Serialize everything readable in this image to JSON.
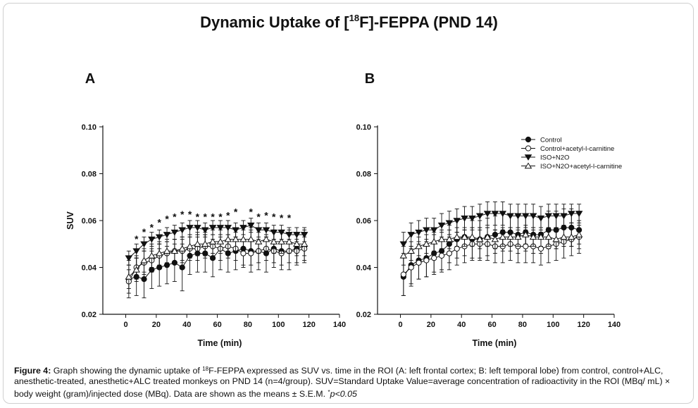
{
  "figure": {
    "title_prefix": "Dynamic Uptake of [",
    "title_sup": "18",
    "title_suffix": "F]-FEPPA (PND 14)",
    "caption": {
      "label": "Figure 4:",
      "text_1": " Graph showing the dynamic uptake of ",
      "sup": "18",
      "text_2": "F-FEPPA expressed as SUV vs. time in the ROI (A: left frontal cortex; B: left temporal lobe) from control, control+ALC, anesthetic-treated, anesthetic+ALC treated monkeys on PND 14 (n=4/group). SUV=Standard Uptake Value=average concentration of radioactivity in the ROI (MBq/ mL) × body weight (gram)/injected dose (MBq). Data are shown as the means ± S.E.M. ",
      "sup_star": "*",
      "text_3": "p<0.05"
    }
  },
  "chart_data": [
    {
      "type": "line",
      "panel_label": "A",
      "xlabel": "Time (min)",
      "ylabel": "SUV",
      "xlim": [
        -15,
        140
      ],
      "ylim": [
        0.02,
        0.1
      ],
      "xticks": [
        0,
        20,
        40,
        60,
        80,
        100,
        120,
        140
      ],
      "yticks": [
        "0.02",
        "0.04",
        "0.06",
        "0.08",
        "0.10"
      ],
      "legend": false,
      "x": [
        2,
        7,
        12,
        17,
        22,
        27,
        32,
        37,
        42,
        47,
        52,
        57,
        62,
        67,
        72,
        77,
        82,
        87,
        92,
        97,
        102,
        107,
        112,
        117
      ],
      "series": [
        {
          "name": "Control",
          "marker": "filled-circle",
          "values": [
            0.035,
            0.036,
            0.035,
            0.039,
            0.04,
            0.041,
            0.042,
            0.04,
            0.045,
            0.046,
            0.046,
            0.044,
            0.048,
            0.046,
            0.047,
            0.048,
            0.047,
            0.047,
            0.046,
            0.048,
            0.047,
            0.047,
            0.048,
            0.049
          ],
          "errors": [
            0.008,
            0.008,
            0.008,
            0.008,
            0.008,
            0.008,
            0.008,
            0.01,
            0.008,
            0.008,
            0.008,
            0.008,
            0.009,
            0.008,
            0.008,
            0.008,
            0.009,
            0.008,
            0.008,
            0.008,
            0.008,
            0.008,
            0.007,
            0.007
          ]
        },
        {
          "name": "Control+acetyl-l-carnitine",
          "marker": "open-circle",
          "values": [
            0.034,
            0.04,
            0.042,
            0.043,
            0.045,
            0.046,
            0.047,
            0.047,
            0.048,
            0.048,
            0.049,
            0.049,
            0.048,
            0.049,
            0.048,
            0.046,
            0.046,
            0.047,
            0.048,
            0.047,
            0.046,
            0.047,
            0.047,
            0.048
          ],
          "errors": [
            0.005,
            0.005,
            0.005,
            0.005,
            0.005,
            0.005,
            0.005,
            0.005,
            0.005,
            0.005,
            0.005,
            0.005,
            0.005,
            0.005,
            0.005,
            0.005,
            0.005,
            0.005,
            0.005,
            0.005,
            0.005,
            0.005,
            0.005,
            0.005
          ]
        },
        {
          "name": "ISO+N2O",
          "marker": "filled-triangle-down",
          "values": [
            0.044,
            0.047,
            0.05,
            0.052,
            0.053,
            0.054,
            0.055,
            0.056,
            0.057,
            0.057,
            0.056,
            0.057,
            0.057,
            0.057,
            0.056,
            0.057,
            0.058,
            0.056,
            0.056,
            0.055,
            0.055,
            0.054,
            0.054,
            0.054
          ],
          "errors": [
            0.003,
            0.003,
            0.003,
            0.003,
            0.003,
            0.003,
            0.003,
            0.003,
            0.003,
            0.003,
            0.003,
            0.003,
            0.003,
            0.003,
            0.003,
            0.003,
            0.003,
            0.003,
            0.003,
            0.003,
            0.003,
            0.003,
            0.003,
            0.003
          ]
        },
        {
          "name": "ISO+N2O+acetyl-l-carnitine",
          "marker": "open-triangle-up",
          "values": [
            0.036,
            0.039,
            0.043,
            0.045,
            0.046,
            0.047,
            0.047,
            0.048,
            0.049,
            0.05,
            0.05,
            0.051,
            0.051,
            0.052,
            0.052,
            0.052,
            0.052,
            0.051,
            0.052,
            0.051,
            0.051,
            0.051,
            0.05,
            0.05
          ],
          "errors": [
            0.005,
            0.005,
            0.005,
            0.005,
            0.005,
            0.005,
            0.005,
            0.005,
            0.005,
            0.005,
            0.005,
            0.005,
            0.005,
            0.005,
            0.005,
            0.005,
            0.005,
            0.005,
            0.005,
            0.005,
            0.005,
            0.005,
            0.005,
            0.005
          ]
        }
      ],
      "annotations": {
        "symbol": "*",
        "at_x": [
          7,
          12,
          17,
          22,
          27,
          32,
          37,
          42,
          47,
          52,
          57,
          62,
          67,
          72,
          82,
          87,
          92,
          97,
          102,
          107
        ],
        "at_y": [
          0.0525,
          0.0555,
          0.0575,
          0.0595,
          0.061,
          0.062,
          0.063,
          0.063,
          0.062,
          0.062,
          0.062,
          0.062,
          0.0625,
          0.064,
          0.064,
          0.062,
          0.0625,
          0.062,
          0.0615,
          0.0615
        ]
      }
    },
    {
      "type": "line",
      "panel_label": "B",
      "xlabel": "Time (min)",
      "ylabel": "",
      "xlim": [
        -15,
        140
      ],
      "ylim": [
        0.02,
        0.1
      ],
      "xticks": [
        0,
        20,
        40,
        60,
        80,
        100,
        120,
        140
      ],
      "yticks": [
        "0.02",
        "0.04",
        "0.06",
        "0.08",
        "0.10"
      ],
      "legend": true,
      "legend_position": "top-right",
      "x": [
        2,
        7,
        12,
        17,
        22,
        27,
        32,
        37,
        42,
        47,
        52,
        57,
        62,
        67,
        72,
        77,
        82,
        87,
        92,
        97,
        102,
        107,
        112,
        117
      ],
      "series": [
        {
          "name": "Control",
          "marker": "filled-circle",
          "values": [
            0.036,
            0.041,
            0.043,
            0.044,
            0.046,
            0.047,
            0.05,
            0.052,
            0.053,
            0.052,
            0.052,
            0.053,
            0.054,
            0.055,
            0.055,
            0.054,
            0.055,
            0.054,
            0.054,
            0.056,
            0.056,
            0.057,
            0.057,
            0.056
          ],
          "errors": [
            0.008,
            0.008,
            0.008,
            0.008,
            0.008,
            0.008,
            0.008,
            0.008,
            0.008,
            0.008,
            0.008,
            0.008,
            0.008,
            0.008,
            0.008,
            0.008,
            0.008,
            0.008,
            0.008,
            0.008,
            0.008,
            0.008,
            0.008,
            0.008
          ]
        },
        {
          "name": "Control+acetyl-l-carnitine",
          "marker": "open-circle",
          "values": [
            0.037,
            0.04,
            0.042,
            0.043,
            0.044,
            0.045,
            0.046,
            0.048,
            0.049,
            0.05,
            0.05,
            0.05,
            0.049,
            0.049,
            0.05,
            0.049,
            0.049,
            0.049,
            0.048,
            0.049,
            0.05,
            0.051,
            0.052,
            0.053
          ],
          "errors": [
            0.009,
            0.008,
            0.007,
            0.007,
            0.007,
            0.007,
            0.007,
            0.007,
            0.007,
            0.007,
            0.007,
            0.007,
            0.007,
            0.007,
            0.007,
            0.007,
            0.007,
            0.007,
            0.007,
            0.007,
            0.007,
            0.007,
            0.007,
            0.007
          ]
        },
        {
          "name": "ISO+N2O",
          "marker": "filled-triangle-down",
          "values": [
            0.05,
            0.054,
            0.055,
            0.056,
            0.056,
            0.058,
            0.059,
            0.06,
            0.061,
            0.061,
            0.062,
            0.063,
            0.063,
            0.063,
            0.062,
            0.062,
            0.062,
            0.062,
            0.061,
            0.062,
            0.062,
            0.062,
            0.063,
            0.063
          ],
          "errors": [
            0.005,
            0.005,
            0.005,
            0.005,
            0.005,
            0.005,
            0.005,
            0.005,
            0.005,
            0.005,
            0.005,
            0.005,
            0.005,
            0.005,
            0.005,
            0.005,
            0.005,
            0.005,
            0.005,
            0.005,
            0.005,
            0.005,
            0.004,
            0.004
          ]
        },
        {
          "name": "ISO+N2O+acetyl-l-carnitine",
          "marker": "open-triangle-up",
          "values": [
            0.045,
            0.047,
            0.049,
            0.05,
            0.051,
            0.052,
            0.052,
            0.053,
            0.053,
            0.053,
            0.052,
            0.053,
            0.052,
            0.053,
            0.053,
            0.053,
            0.054,
            0.053,
            0.053,
            0.053,
            0.052,
            0.053,
            0.053,
            0.054
          ],
          "errors": [
            0.004,
            0.004,
            0.004,
            0.004,
            0.004,
            0.004,
            0.004,
            0.004,
            0.004,
            0.004,
            0.004,
            0.004,
            0.004,
            0.004,
            0.004,
            0.004,
            0.004,
            0.004,
            0.004,
            0.004,
            0.004,
            0.004,
            0.004,
            0.004
          ]
        }
      ],
      "legend_labels": [
        "Control",
        "Control+acetyl-l-carnitine",
        "ISO+N2O",
        "ISO+N2O+acetyl-l-carnitine"
      ]
    }
  ]
}
